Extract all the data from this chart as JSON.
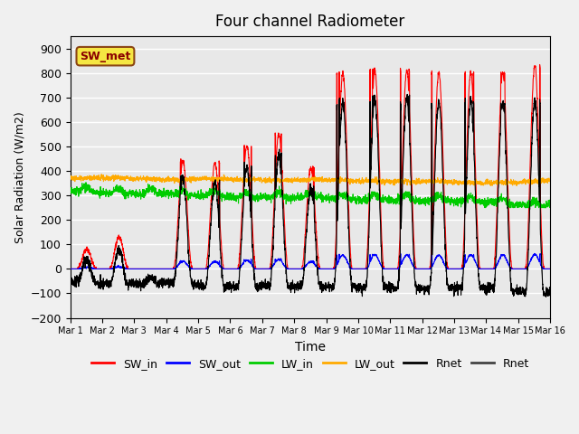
{
  "title": "Four channel Radiometer",
  "xlabel": "Time",
  "ylabel": "Solar Radiation (W/m2)",
  "ylim": [
    -200,
    950
  ],
  "yticks": [
    -200,
    -100,
    0,
    100,
    200,
    300,
    400,
    500,
    600,
    700,
    800,
    900
  ],
  "xlim": [
    0,
    15
  ],
  "xtick_labels": [
    "Mar 1",
    "Mar 2",
    "Mar 3",
    "Mar 4",
    "Mar 5",
    "Mar 6",
    "Mar 7",
    "Mar 8",
    "Mar 9",
    "Mar 10",
    "Mar 11",
    "Mar 12",
    "Mar 13",
    "Mar 14",
    "Mar 15",
    "Mar 16"
  ],
  "colors": {
    "SW_in": "#ff0000",
    "SW_out": "#0000ff",
    "LW_in": "#00cc00",
    "LW_out": "#ffaa00",
    "Rnet1": "#000000",
    "Rnet2": "#444444"
  },
  "legend_labels": [
    "SW_in",
    "SW_out",
    "LW_in",
    "LW_out",
    "Rnet",
    "Rnet"
  ],
  "station_label": "SW_met",
  "background_color": "#e8e8e8",
  "grid_color": "#ffffff",
  "figsize": [
    6.4,
    4.8
  ],
  "dpi": 100
}
